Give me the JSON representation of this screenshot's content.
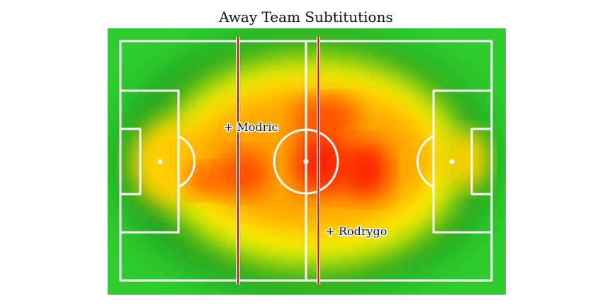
{
  "chart_data": {
    "type": "heatmap",
    "title": "Away Team Subtitutions",
    "pitch": {
      "length": 120,
      "width": 80
    },
    "colors": {
      "grass": "#2ecc2e",
      "lines": "#ffffff",
      "sub_line": "#d01010",
      "heat_low": "#1a8a1a",
      "heat_mid": "#ffff00",
      "heat_high": "#ff2000"
    },
    "substitutions": [
      {
        "label": "+ Modric",
        "minute_line_x": 38
      },
      {
        "label": "+ Rodrygo",
        "minute_line_x": 64
      }
    ]
  }
}
